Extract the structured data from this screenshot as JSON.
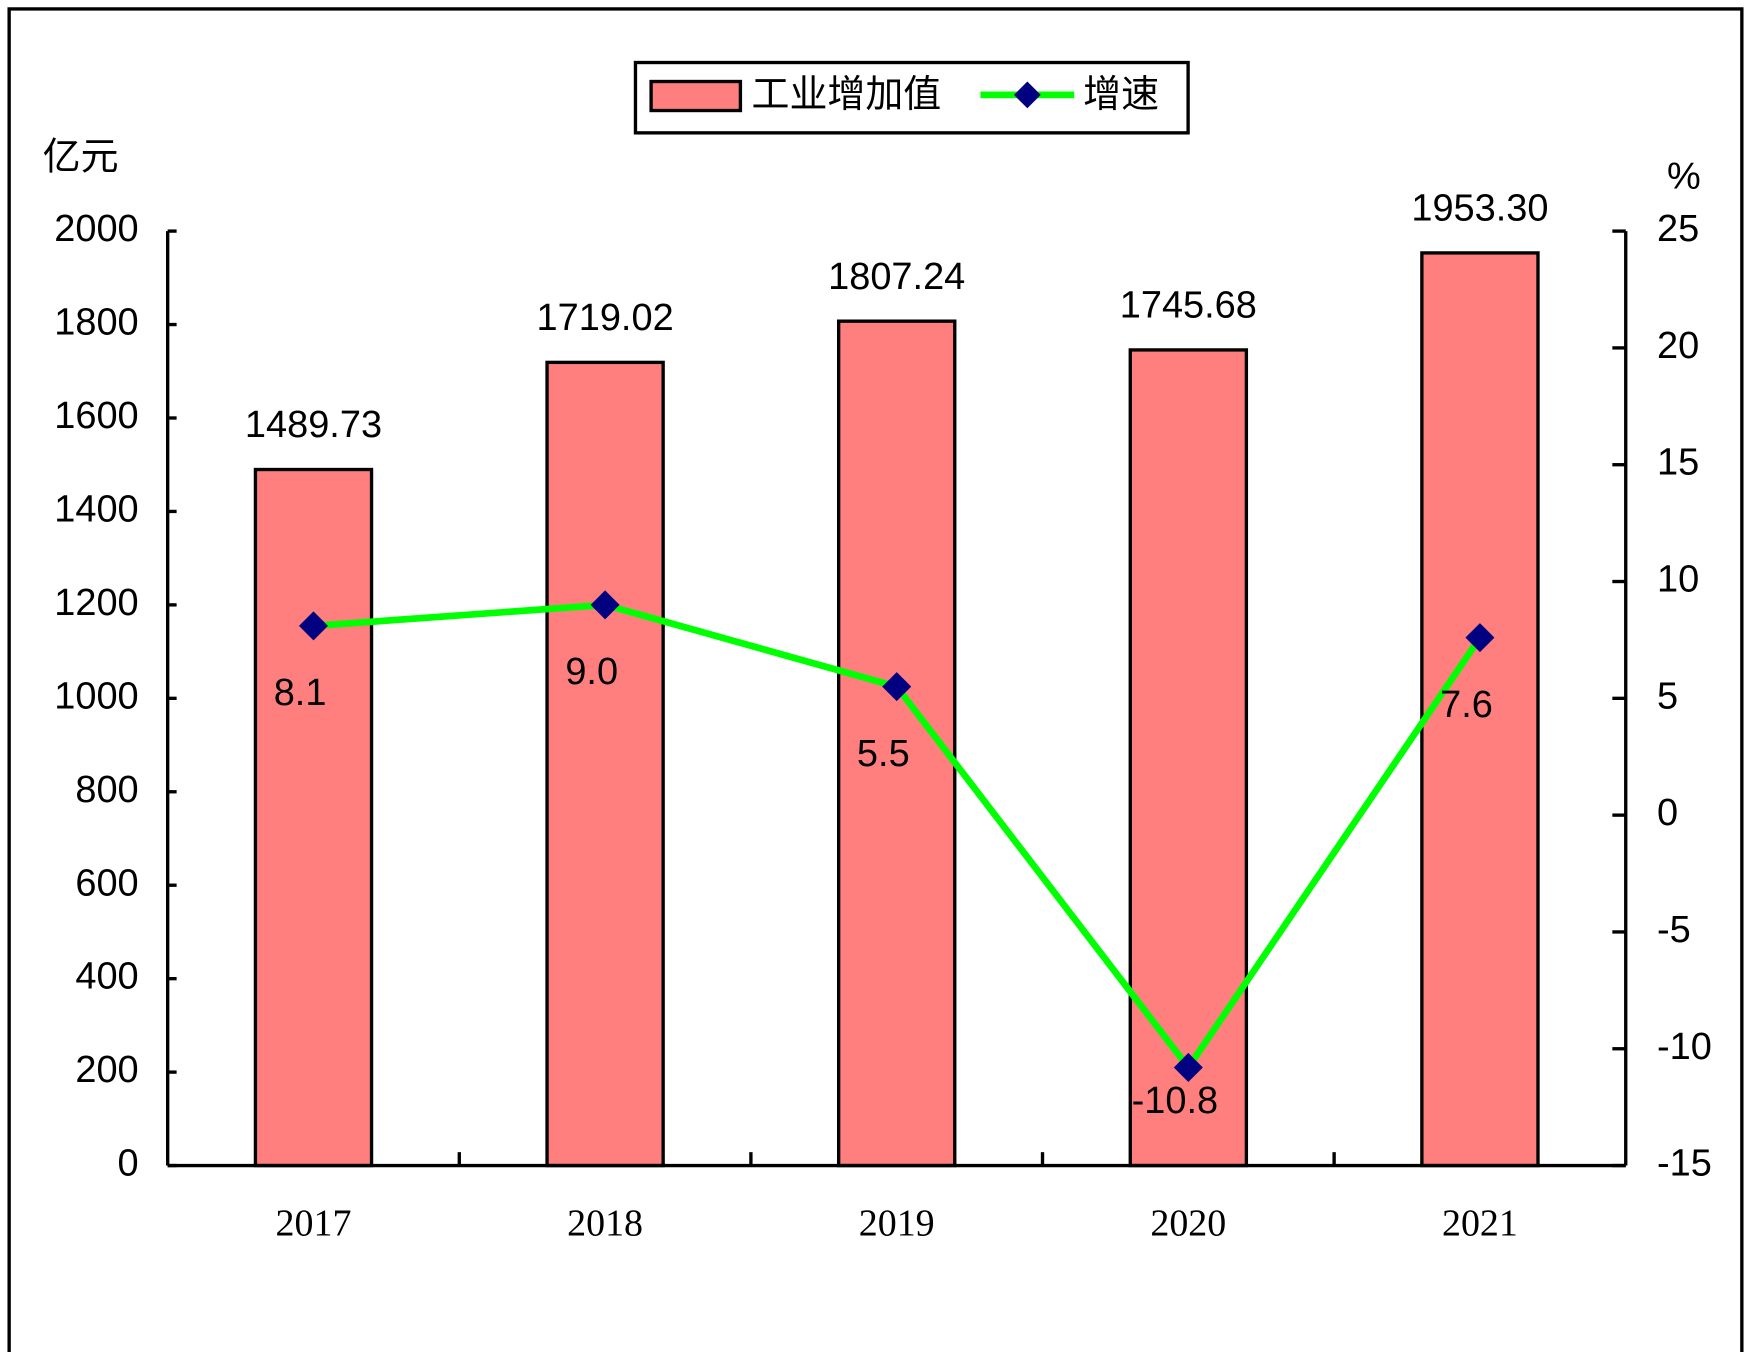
{
  "chart_data": {
    "type": "combo",
    "y_label": "亿元",
    "y2_label": "%",
    "categories": [
      "2017",
      "2018",
      "2019",
      "2020",
      "2021"
    ],
    "series": [
      {
        "name": "工业增加值",
        "type": "bar",
        "color": "#ff7f7f",
        "values": [
          1489.73,
          1719.02,
          1807.24,
          1745.68,
          1953.3
        ],
        "value_labels": [
          "1489.73",
          "1719.02",
          "1807.24",
          "1745.68",
          "1953.30"
        ]
      },
      {
        "name": "增速",
        "type": "line",
        "axis": "y2",
        "color": "#00ff00",
        "marker_color": "#000080",
        "values": [
          8.1,
          9.0,
          5.5,
          -10.8,
          7.6
        ],
        "value_labels": [
          "8.1",
          "9.0",
          "5.5",
          "-10.8",
          "7.6"
        ]
      }
    ],
    "ylim": [
      0,
      2000
    ],
    "yticks": [
      0,
      200,
      400,
      600,
      800,
      1000,
      1200,
      1400,
      1600,
      1800,
      2000
    ],
    "y2lim": [
      -15,
      25
    ],
    "y2ticks": [
      -15,
      -10,
      -5,
      0,
      5,
      10,
      15,
      20,
      25
    ],
    "legend": "top"
  }
}
